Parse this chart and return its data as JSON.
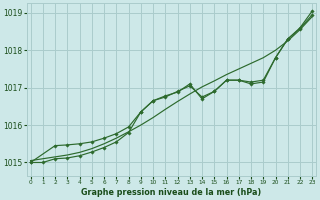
{
  "background_color": "#cde8e8",
  "grid_color": "#aacccc",
  "line_color": "#2d6a2d",
  "marker_color": "#2d6a2d",
  "title": "Graphe pression niveau de la mer (hPa)",
  "title_color": "#1a4d1a",
  "xlim": [
    -0.3,
    23.3
  ],
  "ylim": [
    1014.65,
    1019.25
  ],
  "yticks": [
    1015,
    1016,
    1017,
    1018,
    1019
  ],
  "xticks": [
    0,
    1,
    2,
    3,
    4,
    5,
    6,
    7,
    8,
    9,
    10,
    11,
    12,
    13,
    14,
    15,
    16,
    17,
    18,
    19,
    20,
    21,
    22,
    23
  ],
  "series1_x": [
    0,
    1,
    2,
    3,
    4,
    5,
    6,
    7,
    8,
    9,
    10,
    11,
    12,
    13,
    14,
    15,
    16,
    17,
    18,
    19,
    20,
    21,
    22,
    23
  ],
  "series1_y": [
    1015.05,
    1015.1,
    1015.15,
    1015.2,
    1015.27,
    1015.37,
    1015.5,
    1015.65,
    1015.82,
    1016.0,
    1016.2,
    1016.42,
    1016.63,
    1016.83,
    1017.02,
    1017.18,
    1017.35,
    1017.5,
    1017.65,
    1017.8,
    1018.0,
    1018.25,
    1018.55,
    1018.9
  ],
  "series2_x": [
    0,
    2,
    3,
    4,
    5,
    6,
    7,
    8,
    9,
    10,
    11,
    12,
    13,
    14,
    15,
    16,
    17,
    18,
    19,
    20,
    21,
    22,
    23
  ],
  "series2_y": [
    1015.0,
    1015.45,
    1015.47,
    1015.5,
    1015.55,
    1015.65,
    1015.77,
    1015.95,
    1016.35,
    1016.65,
    1016.75,
    1016.9,
    1017.05,
    1016.75,
    1016.9,
    1017.2,
    1017.2,
    1017.1,
    1017.15,
    1017.8,
    1018.3,
    1018.6,
    1019.05
  ],
  "series3_x": [
    0,
    1,
    2,
    3,
    4,
    5,
    6,
    7,
    8,
    9,
    10,
    11,
    12,
    13,
    14,
    15,
    16,
    17,
    18,
    19,
    20,
    21,
    22,
    23
  ],
  "series3_y": [
    1015.0,
    1015.0,
    1015.1,
    1015.12,
    1015.18,
    1015.28,
    1015.4,
    1015.55,
    1015.8,
    1016.35,
    1016.65,
    1016.78,
    1016.88,
    1017.1,
    1016.7,
    1016.9,
    1017.2,
    1017.2,
    1017.15,
    1017.2,
    1017.8,
    1018.3,
    1018.58,
    1018.95
  ]
}
